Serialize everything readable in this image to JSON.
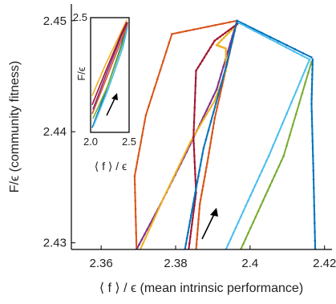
{
  "chart_data": [
    {
      "id": "main",
      "type": "line",
      "xlabel": "⟨ f ⟩ / ϵ (mean intrinsic performance)",
      "ylabel": "F/ϵ (community fitness)",
      "xlim": [
        2.352,
        2.422
      ],
      "ylim": [
        2.4294,
        2.4515
      ],
      "x_ticks": [
        2.36,
        2.38,
        2.4,
        2.42
      ],
      "x_tick_labels": [
        "2.36",
        "2.38",
        "2.4",
        "2.42"
      ],
      "y_ticks": [
        2.43,
        2.44,
        2.45
      ],
      "y_tick_labels": [
        "2.43",
        "2.44",
        "2.45"
      ],
      "grid": false,
      "annotation": "arrow pointing up-right indicating direction of time",
      "series": [
        {
          "color": "#d95319",
          "x": [
            2.3695,
            2.369,
            2.372,
            2.379,
            2.3965
          ],
          "y": [
            2.4294,
            2.436,
            2.4415,
            2.4488,
            2.45
          ]
        },
        {
          "color": "#d95319",
          "x": [
            2.3855,
            2.3865,
            2.3885,
            2.3905,
            2.3965
          ],
          "y": [
            2.4294,
            2.4335,
            2.4372,
            2.4412,
            2.45
          ]
        },
        {
          "color": "#7e2f8e",
          "x": [
            2.3695,
            2.376,
            2.383,
            2.391,
            2.3965
          ],
          "y": [
            2.4294,
            2.4335,
            2.4382,
            2.4438,
            2.45
          ]
        },
        {
          "color": "#edb120",
          "x": [
            2.3705,
            2.377,
            2.384,
            2.3905,
            2.3935,
            2.3935,
            2.391,
            2.397
          ],
          "y": [
            2.4294,
            2.4342,
            2.4391,
            2.4428,
            2.4455,
            2.4475,
            2.4478,
            2.4498
          ]
        },
        {
          "color": "#a2142f",
          "x": [
            2.3835,
            2.3855,
            2.3848,
            2.3855,
            2.3905,
            2.397
          ],
          "y": [
            2.4294,
            2.4345,
            2.4395,
            2.4455,
            2.4482,
            2.4498
          ]
        },
        {
          "color": "#0072bd",
          "x": [
            2.3825,
            2.385,
            2.3875,
            2.3935,
            2.3965
          ],
          "y": [
            2.4294,
            2.434,
            2.4385,
            2.4458,
            2.45
          ]
        },
        {
          "color": "#4dbeee",
          "x": [
            2.3935,
            2.3995,
            2.405,
            2.416
          ],
          "y": [
            2.4294,
            2.4338,
            2.4378,
            2.4465
          ]
        },
        {
          "color": "#77ac30",
          "x": [
            2.3975,
            2.4035,
            2.409,
            2.4165
          ],
          "y": [
            2.4294,
            2.4338,
            2.4378,
            2.4463
          ]
        },
        {
          "color": "#0072bd",
          "x": [
            2.4175,
            2.417,
            2.4165,
            2.4168
          ],
          "y": [
            2.4294,
            2.4365,
            2.4425,
            2.4465
          ]
        },
        {
          "color": "#0072bd",
          "x": [
            2.3965,
            2.4165
          ],
          "y": [
            2.45,
            2.4467
          ]
        },
        {
          "color": "#4dbeee",
          "x": [
            2.397,
            2.416
          ],
          "y": [
            2.4498,
            2.4465
          ]
        }
      ]
    },
    {
      "id": "inset",
      "type": "line",
      "ylabel": "F/ϵ",
      "xlim": [
        2.0,
        2.5
      ],
      "ylim": [
        2.0,
        2.5
      ],
      "x_tick_labels": [
        "2.0",
        "2.5"
      ],
      "y_tick_labels": [
        "2.5"
      ],
      "xlabel": "⟨ f ⟩ / ϵ",
      "annotation": "arrow pointing up-right",
      "series": [
        {
          "color": "#0072bd",
          "x": [
            2.02,
            2.2,
            2.4,
            2.48
          ],
          "y": [
            2.02,
            2.18,
            2.38,
            2.48
          ]
        },
        {
          "color": "#d95319",
          "x": [
            2.02,
            2.21,
            2.41,
            2.48
          ],
          "y": [
            2.08,
            2.24,
            2.41,
            2.47
          ]
        },
        {
          "color": "#edb120",
          "x": [
            2.02,
            2.2,
            2.4,
            2.47
          ],
          "y": [
            2.16,
            2.3,
            2.44,
            2.49
          ]
        },
        {
          "color": "#7e2f8e",
          "x": [
            2.03,
            2.21,
            2.4,
            2.48
          ],
          "y": [
            2.1,
            2.26,
            2.42,
            2.48
          ]
        },
        {
          "color": "#77ac30",
          "x": [
            2.03,
            2.22,
            2.42,
            2.48
          ],
          "y": [
            2.06,
            2.2,
            2.39,
            2.46
          ]
        },
        {
          "color": "#4dbeee",
          "x": [
            2.04,
            2.22,
            2.42,
            2.48
          ],
          "y": [
            2.03,
            2.18,
            2.37,
            2.46
          ]
        },
        {
          "color": "#a2142f",
          "x": [
            2.02,
            2.2,
            2.4,
            2.47
          ],
          "y": [
            2.12,
            2.27,
            2.43,
            2.48
          ]
        }
      ]
    }
  ]
}
